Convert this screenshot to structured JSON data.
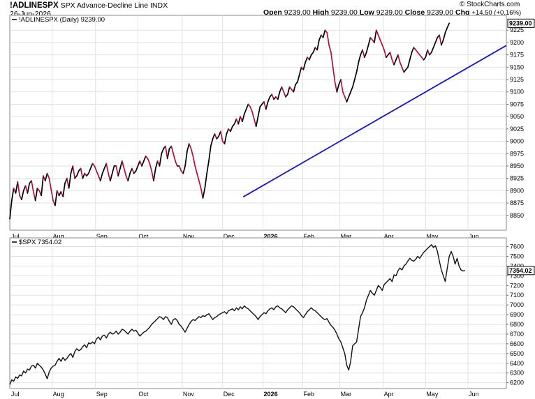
{
  "header": {
    "symbol": "!ADLINESPX",
    "name": "SPX Advance-Decline Line",
    "exchange": "INDX",
    "date": "26-Jun-2026",
    "open_label": "Open",
    "open": "9239.00",
    "high_label": "High",
    "high": "9239.00",
    "low_label": "Low",
    "low": "9239.00",
    "close_label": "Close",
    "close": "9239.00",
    "chg_label": "Chg",
    "chg": "+14.50 (+0.16%)",
    "brand": "© StockCharts.com"
  },
  "legend": {
    "top": "!ADLINESPX (Daily) 9239.00",
    "bottom": "$SPX 7354.02"
  },
  "colors": {
    "up": "#000000",
    "down": "#b3103a",
    "trendline": "#1515d8",
    "grid": "#e2e2e2",
    "spx_line": "#111111"
  },
  "chart_data": [
    {
      "type": "line",
      "title": "!ADLINESPX (Daily) 9239.00",
      "last_value": "9239.00",
      "ylim": [
        8820,
        9255
      ],
      "y_ticks": [
        "8850",
        "8875",
        "8900",
        "8925",
        "8950",
        "8975",
        "9000",
        "9025",
        "9050",
        "9075",
        "9100",
        "9125",
        "9150",
        "9175",
        "9200",
        "9225"
      ],
      "x_ticks": [
        "Jul",
        "Aug",
        "Sep",
        "Oct",
        "Nov",
        "Dec",
        "2026",
        "Feb",
        "Mar",
        "Apr",
        "May",
        "Jun"
      ],
      "x_ticks_bold": [
        "2026"
      ],
      "x_tick_pos": [
        0.3,
        21.5,
        43.5,
        65,
        87.5,
        108,
        128.5,
        148.7,
        167.5,
        189.5,
        211,
        232.5
      ],
      "x_max": 252,
      "series": [
        {
          "values": [
            8843,
            8880,
            8905,
            8895,
            8918,
            8890,
            8882,
            8900,
            8910,
            8895,
            8915,
            8920,
            8898,
            8880,
            8905,
            8900,
            8890,
            8930,
            8920,
            8935,
            8925,
            8902,
            8880,
            8870,
            8900,
            8890,
            8898,
            8888,
            8915,
            8925,
            8905,
            8935,
            8950,
            8925,
            8930,
            8940,
            8945,
            8925,
            8935,
            8930,
            8935,
            8945,
            8955,
            8950,
            8940,
            8930,
            8920,
            8935,
            8945,
            8955,
            8935,
            8920,
            8935,
            8950,
            8950,
            8930,
            8945,
            8960,
            8945,
            8930,
            8920,
            8935,
            8945,
            8935,
            8940,
            8950,
            8960,
            8950,
            8960,
            8970,
            8965,
            8955,
            8940,
            8920,
            8945,
            8960,
            8950,
            8975,
            8985,
            8990,
            8965,
            8985,
            8990,
            8975,
            8960,
            8950,
            8950,
            8940,
            8935,
            8950,
            8980,
            8995,
            8985,
            8970,
            8950,
            8935,
            8920,
            8905,
            8885,
            8905,
            8935,
            8960,
            8990,
            9005,
            9015,
            9005,
            9010,
            9020,
            9000,
            8995,
            9015,
            9025,
            9020,
            9030,
            9035,
            9045,
            9035,
            9050,
            9040,
            9055,
            9065,
            9075,
            9070,
            9060,
            9045,
            9030,
            9050,
            9070,
            9075,
            9080,
            9065,
            9080,
            9090,
            9095,
            9085,
            9090,
            9085,
            9100,
            9110,
            9100,
            9090,
            9095,
            9110,
            9105,
            9100,
            9115,
            9120,
            9135,
            9150,
            9145,
            9160,
            9170,
            9165,
            9175,
            9180,
            9190,
            9185,
            9205,
            9215,
            9210,
            9225,
            9220,
            9195,
            9180,
            9150,
            9120,
            9100,
            9115,
            9125,
            9100,
            9090,
            9080,
            9090,
            9100,
            9110,
            9125,
            9140,
            9160,
            9175,
            9185,
            9170,
            9180,
            9195,
            9210,
            9205,
            9200,
            9225,
            9215,
            9205,
            9195,
            9185,
            9170,
            9175,
            9180,
            9165,
            9155,
            9165,
            9175,
            9160,
            9150,
            9140,
            9145,
            9150,
            9165,
            9180,
            9190,
            9185,
            9180,
            9175,
            9170,
            9165,
            9170,
            9185,
            9175,
            9180,
            9190,
            9200,
            9210,
            9215,
            9195,
            9205,
            9220,
            9230,
            9239
          ]
        },
        {
          "name": "Trendline",
          "from": [
            118.5,
            8887.5
          ],
          "to": [
            252,
            9194
          ]
        }
      ]
    },
    {
      "type": "line",
      "title": "$SPX 7354.02",
      "last_value": "7354.02",
      "ylim": [
        6140,
        7690
      ],
      "y_ticks": [
        "6200",
        "6300",
        "6400",
        "6500",
        "6600",
        "6700",
        "6800",
        "6900",
        "7000",
        "7100",
        "7200",
        "7300",
        "7400",
        "7500",
        "7600"
      ],
      "x_ticks": [
        "Jul",
        "Aug",
        "Sep",
        "Oct",
        "Nov",
        "Dec",
        "2026",
        "Feb",
        "Mar",
        "Apr",
        "May",
        "Jun"
      ],
      "x_ticks_bold": [
        "2026"
      ],
      "x_tick_pos": [
        0.3,
        21.5,
        43.5,
        65,
        87.5,
        108,
        128.5,
        148.7,
        167.5,
        189.5,
        211,
        232.5
      ],
      "x_max": 252,
      "series": [
        {
          "values": [
            6180,
            6230,
            6215,
            6260,
            6245,
            6280,
            6270,
            6320,
            6300,
            6340,
            6330,
            6370,
            6380,
            6350,
            6400,
            6380,
            6360,
            6330,
            6290,
            6240,
            6310,
            6350,
            6370,
            6380,
            6420,
            6450,
            6420,
            6460,
            6430,
            6450,
            6480,
            6500,
            6460,
            6520,
            6550,
            6530,
            6540,
            6570,
            6590,
            6560,
            6610,
            6600,
            6620,
            6600,
            6650,
            6670,
            6640,
            6680,
            6690,
            6660,
            6700,
            6720,
            6700,
            6710,
            6730,
            6700,
            6720,
            6750,
            6740,
            6720,
            6700,
            6730,
            6750,
            6730,
            6740,
            6710,
            6680,
            6700,
            6720,
            6730,
            6750,
            6770,
            6800,
            6820,
            6840,
            6860,
            6880,
            6870,
            6850,
            6880,
            6870,
            6830,
            6800,
            6850,
            6860,
            6840,
            6800,
            6780,
            6750,
            6720,
            6760,
            6800,
            6830,
            6850,
            6840,
            6860,
            6880,
            6870,
            6890,
            6880,
            6900,
            6910,
            6880,
            6850,
            6870,
            6880,
            6900,
            6910,
            6920,
            6930,
            6910,
            6940,
            6950,
            6960,
            6940,
            6970,
            6950,
            6980,
            6960,
            6990,
            6970,
            6960,
            6940,
            6920,
            6900,
            6880,
            6850,
            6880,
            6900,
            6920,
            6910,
            6940,
            6960,
            6970,
            6950,
            6980,
            6990,
            6970,
            6960,
            6940,
            6920,
            6950,
            6970,
            6990,
            6980,
            6960,
            6940,
            6920,
            6890,
            6870,
            6900,
            6930,
            6950,
            6970,
            6950,
            6940,
            6920,
            6900,
            6880,
            6860,
            6850,
            6860,
            6820,
            6790,
            6770,
            6740,
            6700,
            6650,
            6620,
            6560,
            6500,
            6380,
            6330,
            6420,
            6580,
            6600,
            6620,
            6750,
            6880,
            6920,
            6970,
            7050,
            7100,
            7150,
            7120,
            7100,
            7150,
            7200,
            7180,
            7150,
            7210,
            7230,
            7250,
            7270,
            7240,
            7310,
            7300,
            7350,
            7380,
            7360,
            7400,
            7420,
            7450,
            7480,
            7460,
            7450,
            7470,
            7500,
            7480,
            7510,
            7540,
            7560,
            7580,
            7600,
            7620,
            7590,
            7610,
            7550,
            7450,
            7360,
            7300,
            7240,
            7380,
            7500,
            7550,
            7500,
            7420,
            7480,
            7400,
            7360,
            7350,
            7354
          ]
        }
      ]
    }
  ]
}
